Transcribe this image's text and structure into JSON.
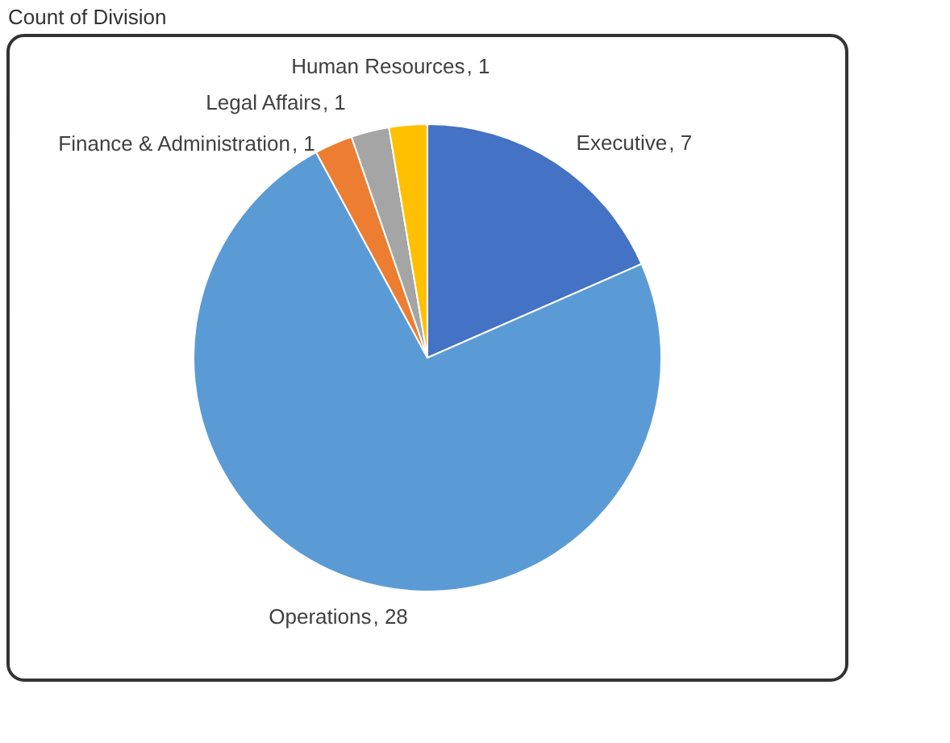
{
  "chart_data": {
    "type": "pie",
    "title": "Count of Division",
    "categories": [
      "Executive",
      "Operations",
      "Finance & Administration",
      "Legal Affairs",
      "Human Resources"
    ],
    "values": [
      7,
      28,
      1,
      1,
      1
    ],
    "colors": [
      "#4472c4",
      "#5b9bd5",
      "#ed7d31",
      "#a5a5a5",
      "#ffc000"
    ],
    "value_labels": [
      ", 7",
      ", 28",
      ", 1",
      ", 1",
      ", 1"
    ],
    "legend": false
  }
}
